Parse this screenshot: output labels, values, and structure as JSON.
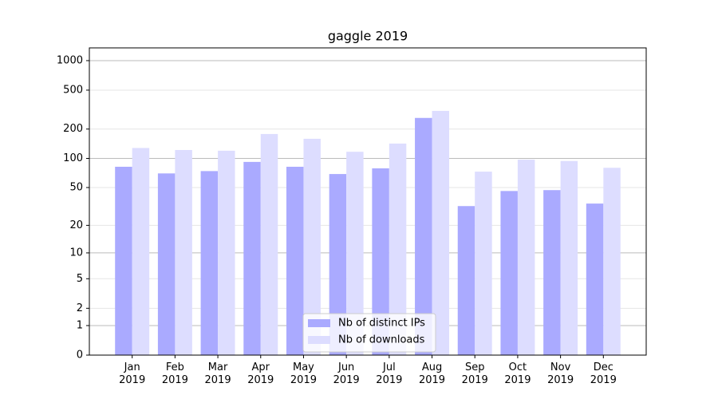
{
  "chart_data": {
    "type": "bar",
    "title": "gaggle 2019",
    "categories": [
      "Jan\n2019",
      "Feb\n2019",
      "Mar\n2019",
      "Apr\n2019",
      "May\n2019",
      "Jun\n2019",
      "Jul\n2019",
      "Aug\n2019",
      "Sep\n2019",
      "Oct\n2019",
      "Nov\n2019",
      "Dec\n2019"
    ],
    "series": [
      {
        "name": "Nb of distinct IPs",
        "color": "#aaaaff",
        "values": [
          82,
          70,
          74,
          92,
          82,
          69,
          79,
          260,
          32,
          46,
          47,
          34
        ]
      },
      {
        "name": "Nb of downloads",
        "color": "#ddddff",
        "values": [
          128,
          122,
          120,
          178,
          159,
          117,
          142,
          307,
          73,
          97,
          94,
          80
        ]
      }
    ],
    "yscale": "log1p",
    "ylim": [
      0,
      1349
    ],
    "yticks": [
      0,
      1,
      2,
      5,
      10,
      20,
      50,
      100,
      200,
      500,
      1000
    ],
    "grid": true,
    "legend": "lower center"
  }
}
